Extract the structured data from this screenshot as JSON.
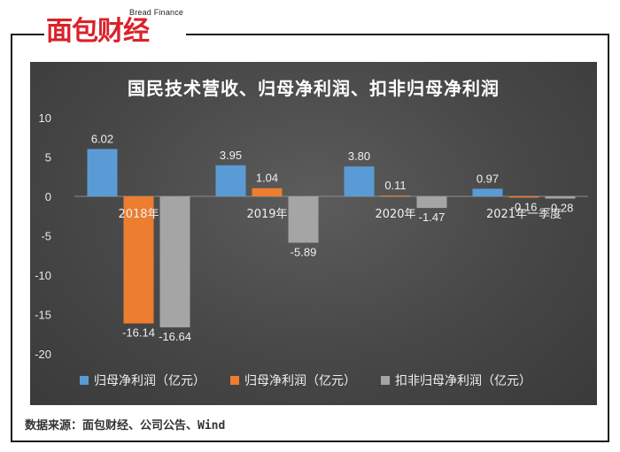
{
  "brand": {
    "en": "Bread Finance",
    "cn": "面包财经"
  },
  "source_note": "数据来源：面包财经、公司公告、Wind",
  "colors": {
    "series1": "#5b9bd5",
    "series2": "#ed7d31",
    "series3": "#a5a5a5"
  },
  "chart_data": {
    "type": "bar",
    "title": "国民技术营收、归母净利润、扣非归母净利润",
    "categories": [
      "2018年",
      "2019年",
      "2020年",
      "2021年一季度"
    ],
    "series": [
      {
        "name": "归母净利润（亿元）",
        "values": [
          6.02,
          3.95,
          3.8,
          0.97
        ],
        "labels": [
          "6.02",
          "3.95",
          "3.80",
          "0.97"
        ]
      },
      {
        "name": "归母净利润（亿元）",
        "values": [
          -16.14,
          1.04,
          0.11,
          -0.16
        ],
        "labels": [
          "-16.14",
          "1.04",
          "0.11",
          "-0.16"
        ]
      },
      {
        "name": "扣非归母净利润（亿元）",
        "values": [
          -16.64,
          -5.89,
          -1.47,
          -0.28
        ],
        "labels": [
          "-16.64",
          "-5.89",
          "-1.47",
          "-0.28"
        ]
      }
    ],
    "ylim": [
      -20,
      10
    ],
    "yticks": [
      "10",
      "5",
      "0",
      "-5",
      "-10",
      "-15",
      "-20"
    ],
    "legend_position": "bottom",
    "grid": false
  }
}
